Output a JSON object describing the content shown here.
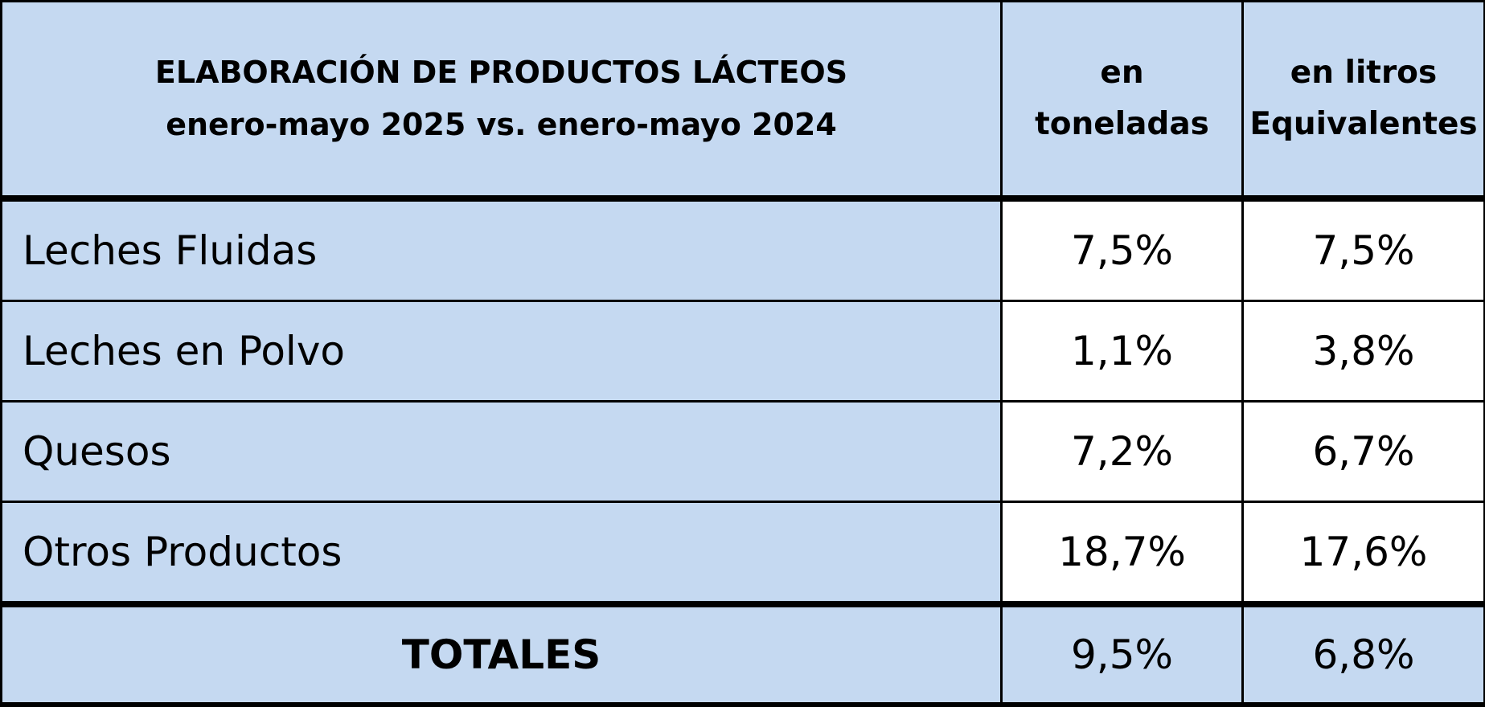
{
  "header": {
    "title_line1": "ELABORACIÓN DE PRODUCTOS LÁCTEOS",
    "title_line2": "enero-mayo 2025 vs. enero-mayo 2024",
    "col1_line1": "en",
    "col1_line2": "toneladas",
    "col2_line1": "en litros",
    "col2_line2": "Equivalentes"
  },
  "rows": [
    {
      "label": "Leches Fluidas",
      "toneladas": "7,5%",
      "litros": "7,5%"
    },
    {
      "label": "Leches en Polvo",
      "toneladas": "1,1%",
      "litros": "3,8%"
    },
    {
      "label": "Quesos",
      "toneladas": "7,2%",
      "litros": "6,7%"
    },
    {
      "label": "Otros Productos",
      "toneladas": "18,7%",
      "litros": "17,6%"
    }
  ],
  "totals": {
    "label": "TOTALES",
    "toneladas": "9,5%",
    "litros": "6,8%"
  },
  "colors": {
    "header_fill": "#c5d9f1",
    "value_fill": "#ffffff",
    "border": "#000000"
  }
}
